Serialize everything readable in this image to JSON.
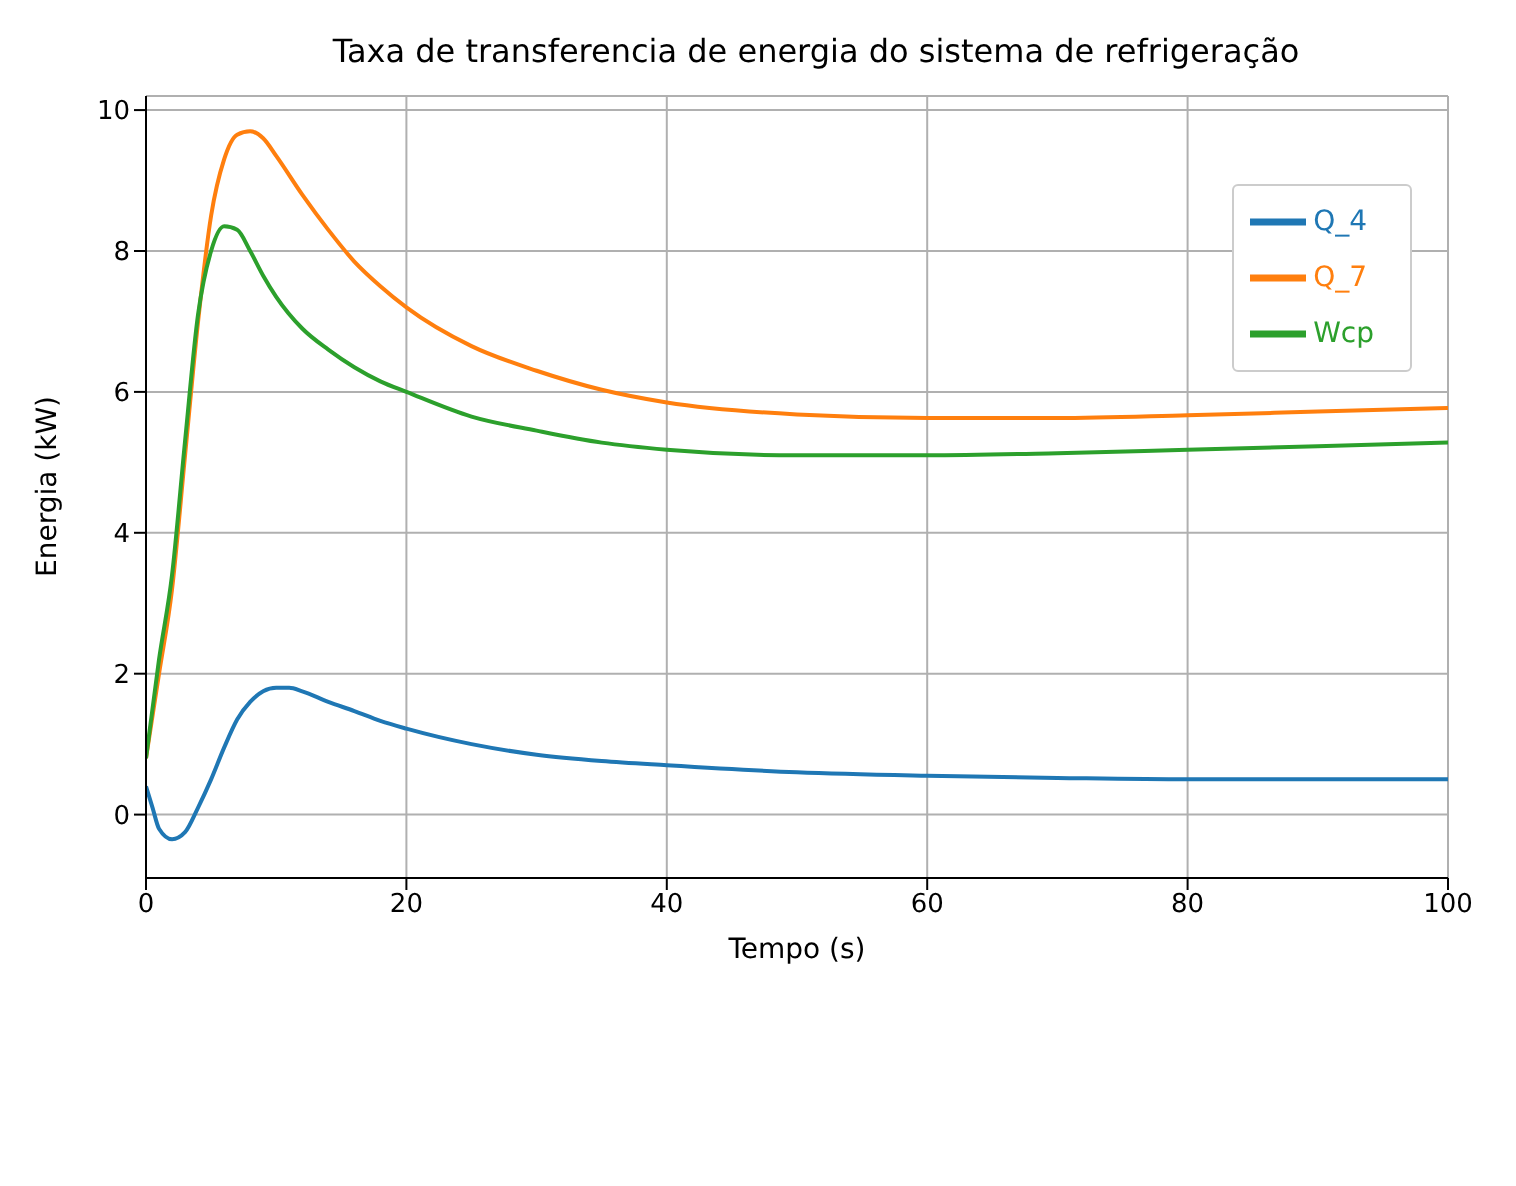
{
  "chart_data": {
    "type": "line",
    "title": "Taxa de transferencia de energia do sistema de refrigeração",
    "xlabel": "Tempo (s)",
    "ylabel": "Energia (kW)",
    "xlim": [
      0,
      100
    ],
    "xticks": [
      0,
      20,
      40,
      60,
      80,
      100
    ],
    "ylim": [
      -0.9,
      10.2
    ],
    "yticks": [
      0,
      2,
      4,
      6,
      8,
      10
    ],
    "grid": true,
    "legend": "top right",
    "marker": "none",
    "line_style": "solid",
    "series": [
      {
        "name": "Q_4",
        "color": "#1f77b4",
        "x": [
          0,
          0.5,
          1,
          2,
          3,
          4,
          5,
          6,
          7,
          8,
          9,
          10,
          11,
          12,
          14,
          16,
          18,
          20,
          25,
          30,
          35,
          40,
          50,
          60,
          70,
          80,
          90,
          100
        ],
        "values": [
          0.4,
          0.1,
          -0.2,
          -0.35,
          -0.25,
          0.1,
          0.5,
          0.95,
          1.35,
          1.6,
          1.75,
          1.8,
          1.8,
          1.75,
          1.6,
          1.47,
          1.33,
          1.22,
          1.0,
          0.85,
          0.76,
          0.7,
          0.6,
          0.55,
          0.52,
          0.5,
          0.5,
          0.5
        ]
      },
      {
        "name": "Q_7",
        "color": "#ff7f0e",
        "x": [
          0,
          1,
          2,
          3,
          4,
          5,
          6,
          7,
          8,
          9,
          10,
          12,
          14,
          16,
          18,
          20,
          25,
          30,
          35,
          40,
          50,
          60,
          70,
          80,
          90,
          100
        ],
        "values": [
          0.8,
          2.0,
          3.2,
          5.1,
          7.0,
          8.5,
          9.3,
          9.65,
          9.7,
          9.6,
          9.35,
          8.8,
          8.3,
          7.85,
          7.5,
          7.2,
          6.65,
          6.3,
          6.03,
          5.85,
          5.68,
          5.63,
          5.63,
          5.67,
          5.72,
          5.77
        ]
      },
      {
        "name": "Wcp",
        "color": "#2ca02c",
        "x": [
          0,
          1,
          2,
          3,
          4,
          5,
          6,
          7,
          8,
          9,
          10,
          12,
          14,
          16,
          18,
          20,
          25,
          30,
          35,
          40,
          50,
          60,
          70,
          80,
          90,
          100
        ],
        "values": [
          0.8,
          2.2,
          3.4,
          5.3,
          7.1,
          8.0,
          8.35,
          8.3,
          8.0,
          7.65,
          7.35,
          6.9,
          6.6,
          6.35,
          6.15,
          6.0,
          5.65,
          5.45,
          5.28,
          5.18,
          5.1,
          5.1,
          5.13,
          5.18,
          5.23,
          5.28
        ]
      }
    ]
  }
}
